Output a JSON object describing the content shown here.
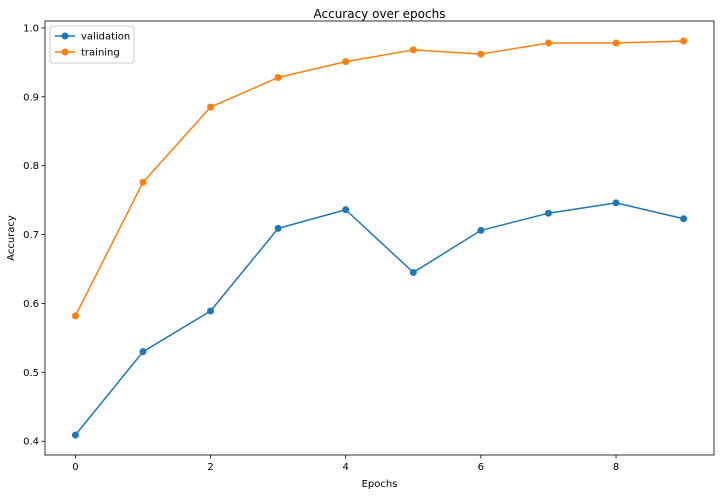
{
  "chart_data": {
    "type": "line",
    "title": "Accuracy over epochs",
    "xlabel": "Epochs",
    "ylabel": "Accuracy",
    "xlim": [
      -0.45,
      9.45
    ],
    "ylim": [
      0.38,
      1.01
    ],
    "xticks": [
      0,
      2,
      4,
      6,
      8
    ],
    "yticks": [
      0.4,
      0.5,
      0.6,
      0.7,
      0.8,
      0.9,
      1.0
    ],
    "ytick_labels": [
      "0.4",
      "0.5",
      "0.6",
      "0.7",
      "0.8",
      "0.9",
      "1.0"
    ],
    "grid": false,
    "legend_position": "top-left",
    "x": [
      0,
      1,
      2,
      3,
      4,
      5,
      6,
      7,
      8,
      9
    ],
    "series": [
      {
        "name": "validation",
        "color": "#1f77b4",
        "values": [
          0.409,
          0.53,
          0.589,
          0.709,
          0.736,
          0.645,
          0.706,
          0.731,
          0.746,
          0.723
        ]
      },
      {
        "name": "training",
        "color": "#ff7f0e",
        "values": [
          0.582,
          0.776,
          0.885,
          0.928,
          0.951,
          0.968,
          0.962,
          0.978,
          0.978,
          0.981
        ]
      }
    ]
  }
}
